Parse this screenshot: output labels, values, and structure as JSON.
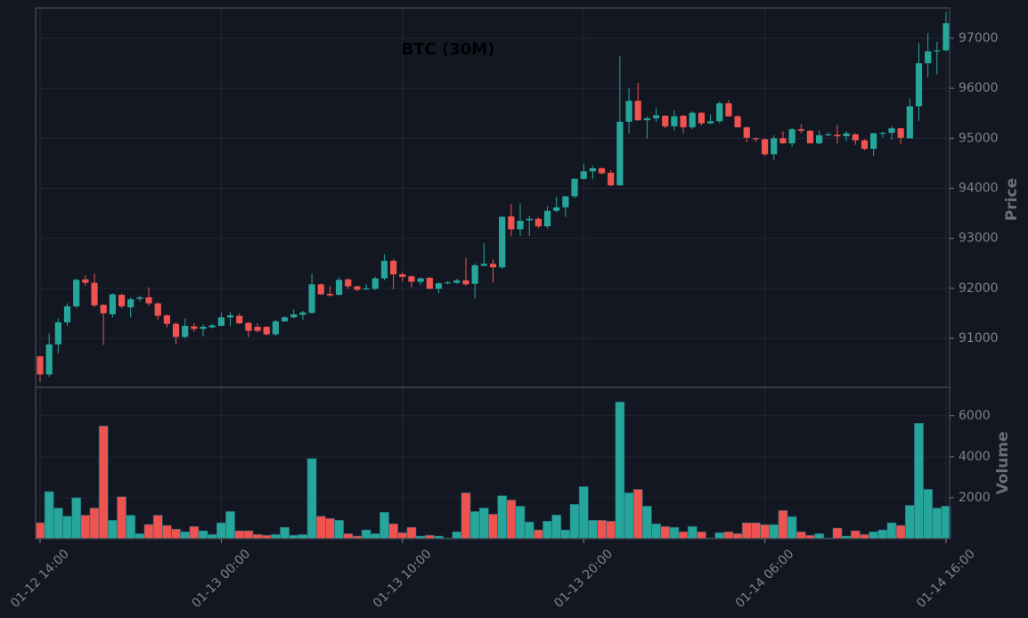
{
  "chart_data": [
    {
      "type": "candlestick",
      "title": "BTC (30M)",
      "ylabel": "Price",
      "up_color": "#26a69a",
      "down_color": "#ef5350",
      "grid": true,
      "categories": [
        "01-12 14:00",
        null,
        null,
        null,
        null,
        null,
        null,
        null,
        null,
        null,
        null,
        null,
        null,
        null,
        null,
        null,
        null,
        null,
        null,
        null,
        "01-13 00:00",
        null,
        null,
        null,
        null,
        null,
        null,
        null,
        null,
        null,
        null,
        null,
        null,
        null,
        null,
        null,
        null,
        null,
        null,
        null,
        "01-13 10:00",
        null,
        null,
        null,
        null,
        null,
        null,
        null,
        null,
        null,
        null,
        null,
        null,
        null,
        null,
        null,
        null,
        null,
        null,
        null,
        "01-13 20:00",
        null,
        null,
        null,
        null,
        null,
        null,
        null,
        null,
        null,
        null,
        null,
        null,
        null,
        null,
        null,
        null,
        null,
        null,
        null,
        "01-14 06:00",
        null,
        null,
        null,
        null,
        null,
        null,
        null,
        null,
        null,
        null,
        null,
        null,
        null,
        null,
        null,
        null,
        null,
        null,
        null,
        "01-14 16:00"
      ],
      "open": [
        90640,
        90280,
        90880,
        91320,
        91640,
        92180,
        92110,
        91670,
        91480,
        91870,
        91620,
        91790,
        91820,
        91700,
        91460,
        91290,
        91030,
        91240,
        91190,
        91220,
        91250,
        91420,
        91450,
        91310,
        91230,
        91230,
        91080,
        91340,
        91420,
        91470,
        91510,
        92080,
        91890,
        91870,
        92180,
        92040,
        91980,
        91990,
        92200,
        92550,
        92280,
        92240,
        92130,
        92210,
        91990,
        92100,
        92110,
        92160,
        92090,
        92450,
        92490,
        92420,
        93440,
        93180,
        93360,
        93390,
        93240,
        93550,
        93620,
        93840,
        94190,
        94340,
        94400,
        94310,
        94060,
        95330,
        95750,
        95360,
        95400,
        95450,
        95240,
        95450,
        95220,
        95510,
        95300,
        95340,
        95700,
        95440,
        95220,
        95000,
        94980,
        94680,
        95000,
        94900,
        95180,
        95150,
        94900,
        95060,
        95070,
        95040,
        95080,
        94960,
        94790,
        95090,
        95110,
        95200,
        95000,
        95640,
        96500,
        96740,
        96760
      ],
      "high": [
        90650,
        91100,
        91400,
        91700,
        92200,
        92260,
        92300,
        91680,
        91900,
        91900,
        91820,
        91850,
        92020,
        91720,
        91480,
        91320,
        91400,
        91300,
        91280,
        91290,
        91520,
        91520,
        91500,
        91330,
        91300,
        91250,
        91370,
        91440,
        91580,
        91550,
        92300,
        92100,
        92040,
        92220,
        92200,
        92050,
        92080,
        92230,
        92680,
        92590,
        92330,
        92260,
        92220,
        92230,
        92120,
        92140,
        92190,
        92610,
        92500,
        92900,
        92580,
        93440,
        93690,
        93700,
        93450,
        93420,
        93640,
        93830,
        93850,
        94200,
        94490,
        94450,
        94420,
        94360,
        96640,
        96000,
        96110,
        95440,
        95600,
        95460,
        95560,
        95470,
        95540,
        95520,
        95480,
        95740,
        95760,
        95460,
        95230,
        95020,
        95000,
        95060,
        95140,
        95210,
        95280,
        95170,
        95160,
        95120,
        95270,
        95150,
        95100,
        94980,
        95110,
        95130,
        95240,
        95210,
        95800,
        96900,
        97100,
        96930,
        97520
      ],
      "low": [
        90130,
        90230,
        90700,
        91250,
        91600,
        92050,
        91620,
        90870,
        91420,
        91600,
        91420,
        91740,
        91650,
        91370,
        91220,
        90880,
        91000,
        91130,
        91040,
        91200,
        91250,
        91240,
        91290,
        91020,
        91120,
        91060,
        91050,
        91330,
        91400,
        91370,
        91490,
        91870,
        91830,
        91860,
        91990,
        91950,
        91960,
        91970,
        92160,
        91980,
        92140,
        92020,
        92070,
        91980,
        91900,
        92080,
        92090,
        92050,
        91790,
        92440,
        92110,
        92390,
        93040,
        93050,
        93050,
        93200,
        93200,
        93520,
        93430,
        93800,
        94170,
        94180,
        94280,
        94040,
        94050,
        95100,
        95350,
        95000,
        95320,
        95200,
        95150,
        95100,
        95180,
        95260,
        95280,
        95300,
        95430,
        95210,
        94920,
        94930,
        94650,
        94570,
        94890,
        94830,
        95100,
        94890,
        94880,
        95040,
        94890,
        94940,
        94870,
        94760,
        94650,
        95020,
        94970,
        94880,
        94990,
        95350,
        96220,
        96280,
        96740
      ],
      "close": [
        90280,
        90880,
        91320,
        91640,
        92170,
        92110,
        91660,
        91500,
        91880,
        91640,
        91780,
        91820,
        91700,
        91450,
        91290,
        91030,
        91250,
        91190,
        91230,
        91260,
        91420,
        91460,
        91300,
        91150,
        91150,
        91080,
        91340,
        91420,
        91480,
        91520,
        92080,
        91880,
        91860,
        92170,
        92040,
        91970,
        92000,
        92200,
        92550,
        92280,
        92230,
        92130,
        92200,
        91990,
        92100,
        92120,
        92160,
        92080,
        92460,
        92490,
        92420,
        93430,
        93180,
        93350,
        93390,
        93240,
        93550,
        93620,
        93840,
        94190,
        94340,
        94400,
        94300,
        94060,
        95330,
        95750,
        95360,
        95400,
        95460,
        95240,
        95440,
        95220,
        95510,
        95300,
        95340,
        95700,
        95440,
        95220,
        95010,
        94980,
        94680,
        95000,
        94900,
        95180,
        95150,
        94900,
        95060,
        95080,
        95040,
        95100,
        94960,
        94790,
        95100,
        95110,
        95200,
        95010,
        95640,
        96500,
        96740,
        96760,
        97300
      ],
      "ylim": [
        90020,
        97605
      ],
      "yticks": [
        91000,
        92000,
        93000,
        94000,
        95000,
        96000,
        97000
      ]
    },
    {
      "type": "bar",
      "ylabel": "Volume",
      "grid": true,
      "values": [
        780,
        2300,
        1500,
        1100,
        2000,
        1150,
        1500,
        5500,
        900,
        2050,
        1150,
        250,
        700,
        1150,
        650,
        470,
        340,
        600,
        390,
        210,
        780,
        1330,
        390,
        390,
        210,
        170,
        210,
        560,
        170,
        210,
        3910,
        1100,
        990,
        900,
        250,
        130,
        430,
        250,
        1290,
        730,
        300,
        560,
        130,
        170,
        130,
        40,
        340,
        2240,
        1330,
        1500,
        1200,
        2100,
        1890,
        1590,
        820,
        430,
        860,
        1160,
        430,
        1680,
        2540,
        900,
        900,
        860,
        6670,
        2240,
        2410,
        1590,
        730,
        600,
        560,
        340,
        600,
        340,
        40,
        300,
        340,
        250,
        780,
        780,
        690,
        690,
        1380,
        1080,
        340,
        170,
        250,
        40,
        520,
        130,
        390,
        210,
        340,
        430,
        780,
        650,
        1630,
        5630,
        2410,
        1500,
        1590
      ],
      "ylim": [
        0,
        7380
      ],
      "yticks": [
        2000,
        4000,
        6000
      ]
    }
  ]
}
